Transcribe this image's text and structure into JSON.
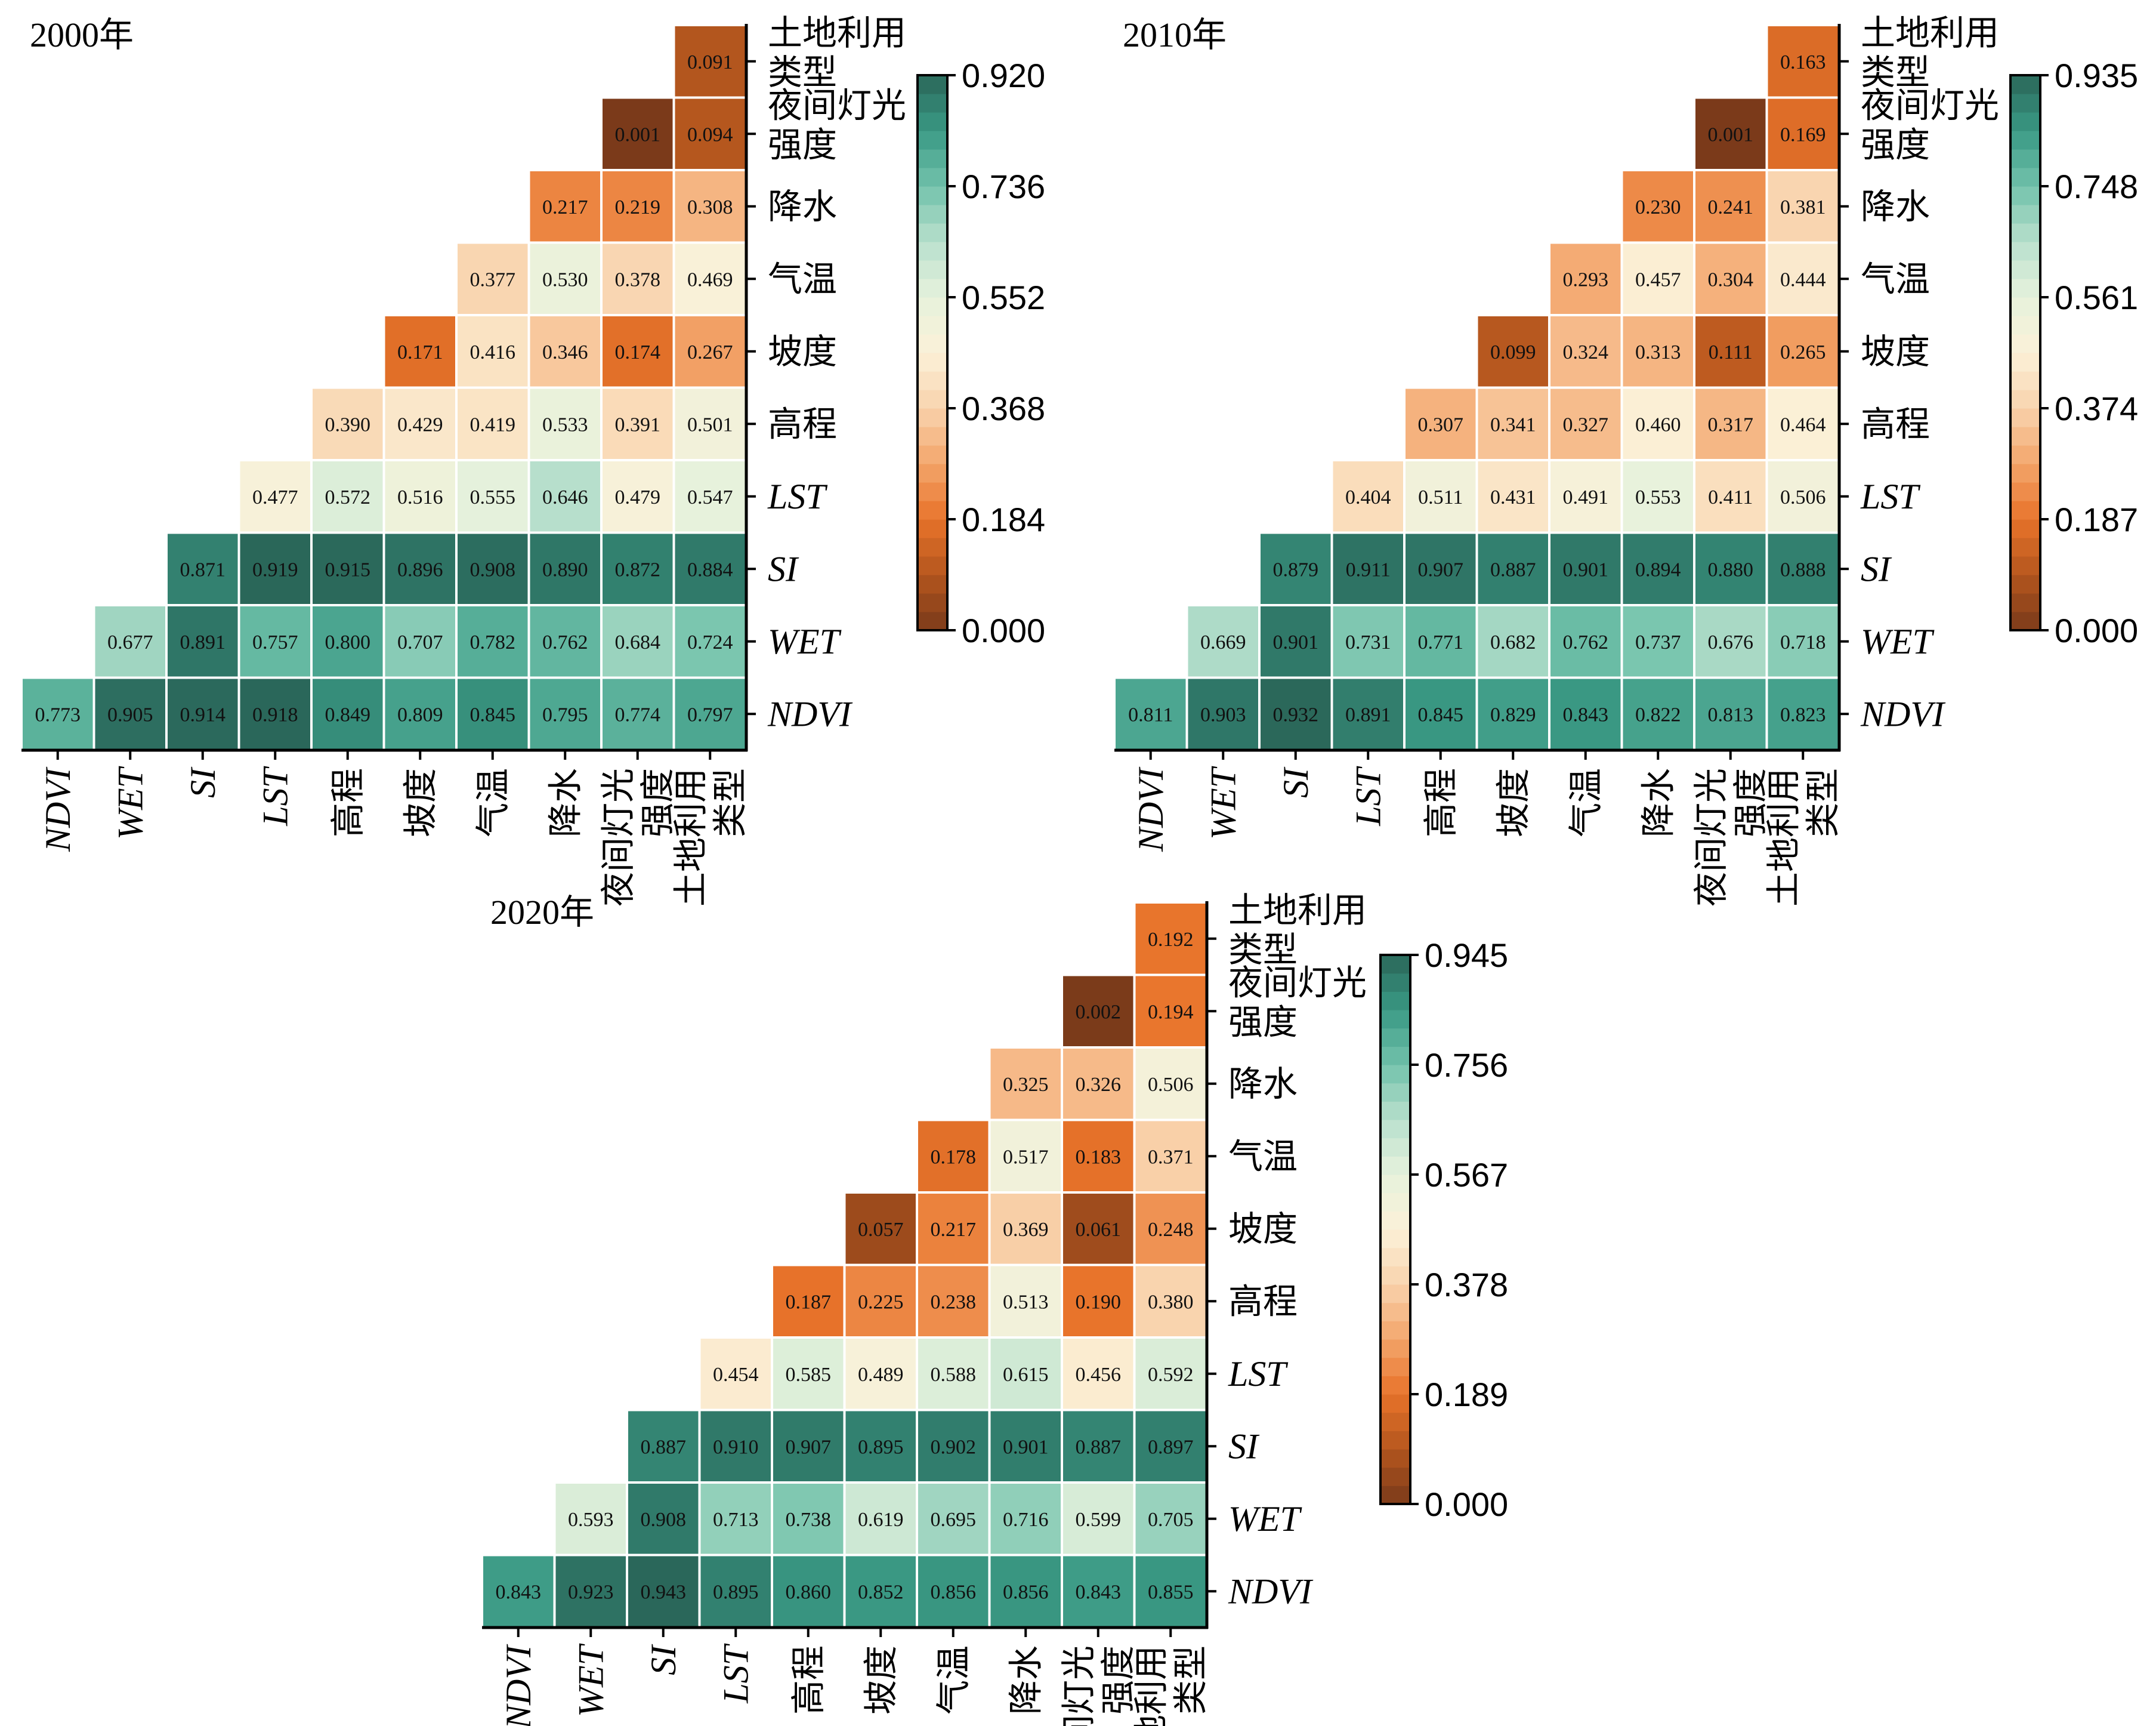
{
  "variables": [
    {
      "lines": [
        "NDVI"
      ],
      "italic": true
    },
    {
      "lines": [
        "WET"
      ],
      "italic": true
    },
    {
      "lines": [
        "SI"
      ],
      "italic": true
    },
    {
      "lines": [
        "LST"
      ],
      "italic": true
    },
    {
      "lines": [
        "高程"
      ],
      "italic": false
    },
    {
      "lines": [
        "坡度"
      ],
      "italic": false
    },
    {
      "lines": [
        "气温"
      ],
      "italic": false
    },
    {
      "lines": [
        "降水"
      ],
      "italic": false
    },
    {
      "lines": [
        "夜间灯光",
        "强度"
      ],
      "italic": false
    },
    {
      "lines": [
        "土地利用",
        "类型"
      ],
      "italic": false
    }
  ],
  "colormap": {
    "name": "BrBG-like (brown to teal)",
    "stops": [
      "#7a3a1a",
      "#b4561e",
      "#e8732a",
      "#f3a56b",
      "#f9d3ad",
      "#fbf1d8",
      "#e6f2dc",
      "#b9e0cd",
      "#72c2ab",
      "#3a9984",
      "#2a6659"
    ]
  },
  "chart_data": [
    {
      "type": "heatmap",
      "title": "2000年",
      "colorbar": {
        "min": 0.0,
        "max": 0.92,
        "ticks": [
          "0.920",
          "0.736",
          "0.552",
          "0.368",
          "0.184",
          "0.000"
        ]
      },
      "rows_bottom_to_top": [
        [
          0.773,
          0.905,
          0.914,
          0.918,
          0.849,
          0.809,
          0.845,
          0.795,
          0.774,
          0.797
        ],
        [
          0.677,
          0.891,
          0.757,
          0.8,
          0.707,
          0.782,
          0.762,
          0.684,
          0.724
        ],
        [
          0.871,
          0.919,
          0.915,
          0.896,
          0.908,
          0.89,
          0.872,
          0.884
        ],
        [
          0.477,
          0.572,
          0.516,
          0.555,
          0.646,
          0.479,
          0.547
        ],
        [
          0.39,
          0.429,
          0.419,
          0.533,
          0.391,
          0.501
        ],
        [
          0.171,
          0.416,
          0.346,
          0.174,
          0.267
        ],
        [
          0.377,
          0.53,
          0.378,
          0.469
        ],
        [
          0.217,
          0.219,
          0.308
        ],
        [
          0.001,
          0.094
        ],
        [
          0.091
        ]
      ]
    },
    {
      "type": "heatmap",
      "title": "2010年",
      "colorbar": {
        "min": 0.0,
        "max": 0.935,
        "ticks": [
          "0.935",
          "0.748",
          "0.561",
          "0.374",
          "0.187",
          "0.000"
        ]
      },
      "rows_bottom_to_top": [
        [
          0.811,
          0.903,
          0.932,
          0.891,
          0.845,
          0.829,
          0.843,
          0.822,
          0.813,
          0.823
        ],
        [
          0.669,
          0.901,
          0.731,
          0.771,
          0.682,
          0.762,
          0.737,
          0.676,
          0.718
        ],
        [
          0.879,
          0.911,
          0.907,
          0.887,
          0.901,
          0.894,
          0.88,
          0.888
        ],
        [
          0.404,
          0.511,
          0.431,
          0.491,
          0.553,
          0.411,
          0.506
        ],
        [
          0.307,
          0.341,
          0.327,
          0.46,
          0.317,
          0.464
        ],
        [
          0.099,
          0.324,
          0.313,
          0.111,
          0.265
        ],
        [
          0.293,
          0.457,
          0.304,
          0.444
        ],
        [
          0.23,
          0.241,
          0.381
        ],
        [
          0.001,
          0.169
        ],
        [
          0.163
        ]
      ]
    },
    {
      "type": "heatmap",
      "title": "2020年",
      "colorbar": {
        "min": 0.0,
        "max": 0.945,
        "ticks": [
          "0.945",
          "0.756",
          "0.567",
          "0.378",
          "0.189",
          "0.000"
        ]
      },
      "rows_bottom_to_top": [
        [
          0.843,
          0.923,
          0.943,
          0.895,
          0.86,
          0.852,
          0.856,
          0.856,
          0.843,
          0.855
        ],
        [
          0.593,
          0.908,
          0.713,
          0.738,
          0.619,
          0.695,
          0.716,
          0.599,
          0.705
        ],
        [
          0.887,
          0.91,
          0.907,
          0.895,
          0.902,
          0.901,
          0.887,
          0.897
        ],
        [
          0.454,
          0.585,
          0.489,
          0.588,
          0.615,
          0.456,
          0.592
        ],
        [
          0.187,
          0.225,
          0.238,
          0.513,
          0.19,
          0.38
        ],
        [
          0.057,
          0.217,
          0.369,
          0.061,
          0.248
        ],
        [
          0.178,
          0.517,
          0.183,
          0.371
        ],
        [
          0.325,
          0.326,
          0.506
        ],
        [
          0.002,
          0.194
        ],
        [
          0.192
        ]
      ]
    }
  ]
}
